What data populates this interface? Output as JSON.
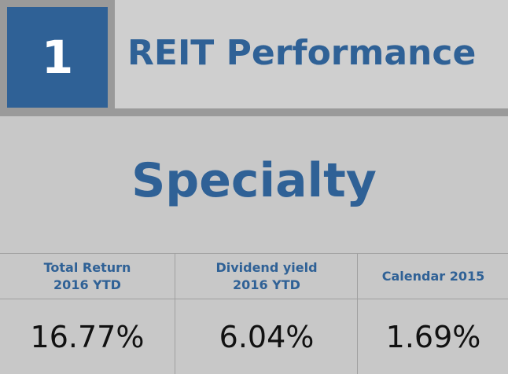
{
  "header": {
    "rank": "1",
    "title": "REIT Performance"
  },
  "subtitle": "Specialty",
  "stats": [
    {
      "label": "Total Return\n2016 YTD",
      "value": "16.77%"
    },
    {
      "label": "Dividend yield\n2016 YTD",
      "value": "6.04%"
    },
    {
      "label": "Calendar 2015",
      "value": "1.69%"
    }
  ],
  "colors": {
    "accent": "#2f6196",
    "background": "#c8c8c8",
    "header_background": "#cfcfcf",
    "band": "#9a9a9a"
  }
}
